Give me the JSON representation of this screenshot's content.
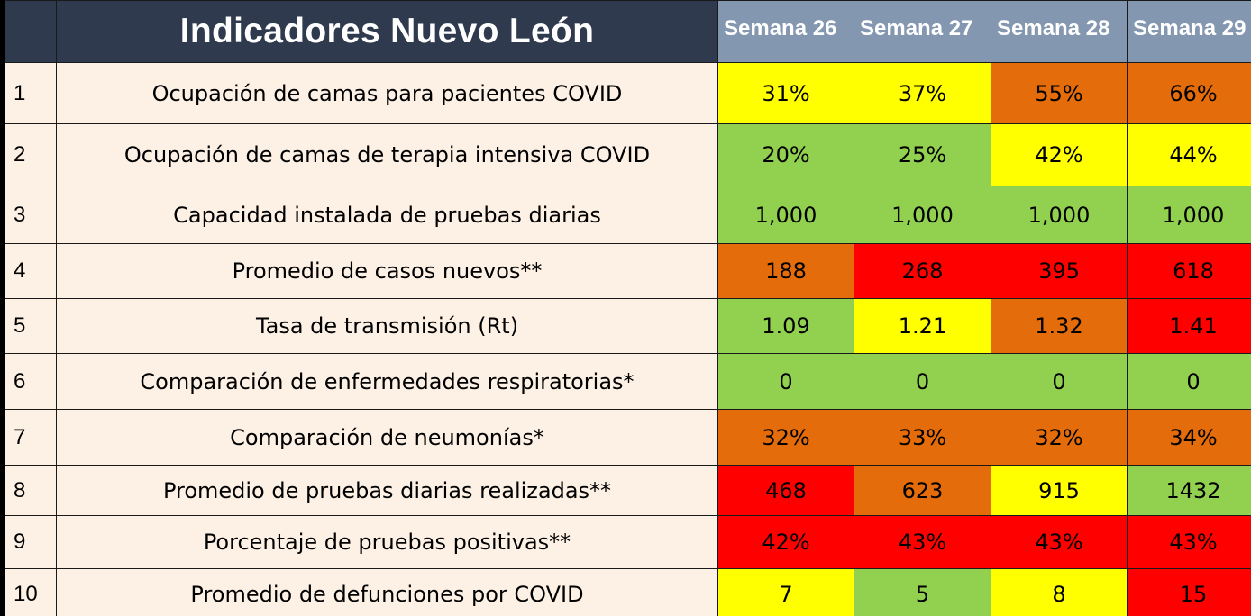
{
  "title": "Indicadores Nuevo León",
  "weeks": [
    "Semana 26",
    "Semana 27",
    "Semana 28",
    "Semana 29"
  ],
  "colors": {
    "green": "#92d050",
    "yellow": "#ffff00",
    "orange": "#e46c0a",
    "red": "#ff0000",
    "header_dark": "#2f3a4e",
    "header_week": "#8497b0",
    "row_bg": "#fdf1e6"
  },
  "rows": [
    {
      "num": "1",
      "name": "Ocupación de camas para pacientes COVID",
      "values": [
        "31%",
        "37%",
        "55%",
        "66%"
      ],
      "status": [
        "yellow",
        "yellow",
        "orange",
        "orange"
      ]
    },
    {
      "num": "2",
      "name": "Ocupación de camas de terapia intensiva COVID",
      "values": [
        "20%",
        "25%",
        "42%",
        "44%"
      ],
      "status": [
        "green",
        "green",
        "yellow",
        "yellow"
      ]
    },
    {
      "num": "3",
      "name": "Capacidad instalada de pruebas diarias",
      "values": [
        "1,000",
        "1,000",
        "1,000",
        "1,000"
      ],
      "status": [
        "green",
        "green",
        "green",
        "green"
      ]
    },
    {
      "num": "4",
      "name": "Promedio de casos nuevos**",
      "values": [
        "188",
        "268",
        "395",
        "618"
      ],
      "status": [
        "orange",
        "red",
        "red",
        "red"
      ]
    },
    {
      "num": "5",
      "name": "Tasa de transmisión (Rt)",
      "values": [
        "1.09",
        "1.21",
        "1.32",
        "1.41"
      ],
      "status": [
        "green",
        "yellow",
        "orange",
        "red"
      ]
    },
    {
      "num": "6",
      "name": "Comparación de enfermedades respiratorias*",
      "values": [
        "0",
        "0",
        "0",
        "0"
      ],
      "status": [
        "green",
        "green",
        "green",
        "green"
      ]
    },
    {
      "num": "7",
      "name": "Comparación de neumonías*",
      "values": [
        "32%",
        "33%",
        "32%",
        "34%"
      ],
      "status": [
        "orange",
        "orange",
        "orange",
        "orange"
      ]
    },
    {
      "num": "8",
      "name": "Promedio de pruebas diarias realizadas**",
      "values": [
        "468",
        "623",
        "915",
        "1432"
      ],
      "status": [
        "red",
        "orange",
        "yellow",
        "green"
      ]
    },
    {
      "num": "9",
      "name": "Porcentaje de pruebas positivas**",
      "values": [
        "42%",
        "43%",
        "43%",
        "43%"
      ],
      "status": [
        "red",
        "red",
        "red",
        "red"
      ]
    },
    {
      "num": "10",
      "name": "Promedio de defunciones por COVID",
      "values": [
        "7",
        "5",
        "8",
        "15"
      ],
      "status": [
        "yellow",
        "green",
        "yellow",
        "red"
      ]
    }
  ]
}
